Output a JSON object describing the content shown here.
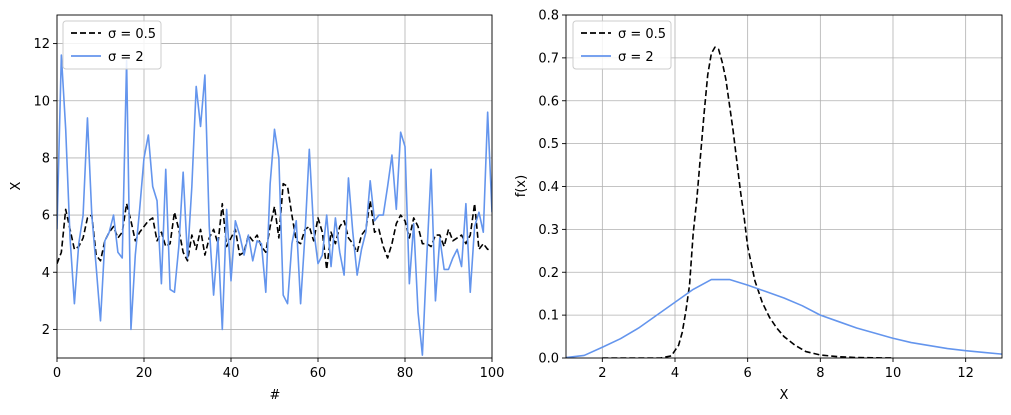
{
  "chart_data": [
    {
      "type": "line",
      "xlabel": "#",
      "ylabel": "X",
      "xlim": [
        0,
        100
      ],
      "ylim": [
        1,
        13
      ],
      "xticks": [
        "0",
        "20",
        "40",
        "60",
        "80",
        "100"
      ],
      "yticks": [
        "2",
        "4",
        "6",
        "8",
        "10",
        "12"
      ],
      "grid": true,
      "legend_position": "top-left",
      "series": [
        {
          "name": "σ = 0.5",
          "color": "#000000",
          "dash": true,
          "y": [
            4.3,
            4.7,
            6.2,
            5.5,
            4.8,
            4.9,
            5.2,
            5.9,
            6.0,
            4.6,
            4.4,
            5.1,
            5.4,
            5.6,
            5.2,
            5.4,
            6.4,
            5.8,
            5.1,
            5.4,
            5.6,
            5.8,
            5.9,
            5.1,
            5.4,
            4.9,
            5.0,
            6.1,
            5.5,
            4.7,
            4.4,
            5.3,
            4.8,
            5.5,
            4.6,
            5.2,
            5.5,
            5.0,
            6.4,
            4.9,
            5.2,
            5.5,
            4.6,
            4.7,
            5.3,
            5.1,
            5.3,
            4.9,
            4.7,
            5.6,
            6.3,
            5.2,
            7.1,
            7.0,
            6.0,
            5.1,
            5.0,
            5.5,
            5.6,
            5.1,
            5.9,
            5.4,
            4.1,
            5.4,
            5.0,
            5.6,
            5.8,
            5.2,
            5.0,
            4.7,
            5.3,
            5.5,
            6.5,
            5.4,
            5.5,
            4.9,
            4.5,
            5.0,
            5.7,
            6.0,
            5.8,
            5.2,
            5.9,
            5.6,
            5.0,
            5.0,
            4.9,
            5.3,
            5.3,
            4.9,
            5.5,
            5.1,
            5.2,
            5.3,
            5.0,
            5.3,
            6.4,
            4.8,
            5.0,
            4.8,
            4.8
          ]
        },
        {
          "name": "σ = 2",
          "color": "#6495ed",
          "dash": false,
          "y": [
            5.5,
            11.6,
            9.0,
            5.2,
            2.9,
            5.0,
            6.0,
            9.4,
            6.0,
            4.2,
            2.3,
            5.1,
            5.4,
            6.0,
            4.7,
            4.5,
            11.4,
            2.0,
            4.6,
            6.2,
            8.0,
            8.8,
            7.0,
            6.5,
            3.6,
            7.6,
            3.4,
            3.3,
            4.9,
            7.5,
            4.5,
            7.0,
            10.5,
            9.1,
            10.9,
            5.6,
            3.2,
            5.2,
            2.0,
            6.2,
            3.7,
            5.8,
            5.3,
            4.6,
            5.3,
            4.4,
            5.1,
            5.0,
            3.3,
            7.1,
            9.0,
            8.0,
            3.2,
            2.9,
            5.0,
            5.8,
            2.9,
            5.3,
            8.3,
            5.5,
            4.3,
            4.6,
            6.0,
            4.2,
            5.9,
            4.7,
            3.9,
            7.3,
            5.4,
            3.9,
            4.8,
            5.4,
            7.2,
            5.8,
            6.0,
            6.0,
            7.0,
            8.1,
            6.2,
            8.9,
            8.4,
            3.6,
            5.7,
            2.6,
            1.1,
            4.5,
            7.6,
            3.0,
            5.2,
            4.1,
            4.1,
            4.5,
            4.8,
            4.2,
            6.4,
            3.3,
            5.6,
            6.1,
            5.4,
            9.6,
            6.1
          ]
        }
      ]
    },
    {
      "type": "line",
      "xlabel": "X",
      "ylabel": "f(x)",
      "xlim": [
        1,
        13
      ],
      "ylim": [
        0,
        0.8
      ],
      "xticks": [
        "2",
        "4",
        "6",
        "8",
        "10",
        "12"
      ],
      "yticks": [
        "0.0",
        "0.1",
        "0.2",
        "0.3",
        "0.4",
        "0.5",
        "0.6",
        "0.7",
        "0.8"
      ],
      "grid": true,
      "legend_position": "top-left",
      "series": [
        {
          "name": "σ = 0.5",
          "color": "#000000",
          "dash": true,
          "x": [
            2.0,
            3.0,
            3.6,
            3.9,
            4.1,
            4.2,
            4.3,
            4.4,
            4.5,
            4.6,
            4.7,
            4.8,
            4.9,
            5.0,
            5.1,
            5.2,
            5.3,
            5.4,
            5.5,
            5.6,
            5.7,
            5.8,
            5.9,
            6.0,
            6.2,
            6.4,
            6.6,
            6.8,
            7.0,
            7.3,
            7.6,
            8.0,
            8.5,
            9.0,
            10.0
          ],
          "y": [
            0.0,
            0.0,
            0.0,
            0.005,
            0.03,
            0.06,
            0.11,
            0.17,
            0.29,
            0.37,
            0.47,
            0.57,
            0.66,
            0.71,
            0.725,
            0.72,
            0.69,
            0.65,
            0.59,
            0.53,
            0.46,
            0.39,
            0.33,
            0.26,
            0.18,
            0.13,
            0.095,
            0.07,
            0.05,
            0.03,
            0.015,
            0.007,
            0.003,
            0.001,
            0.0
          ]
        },
        {
          "name": "σ = 2",
          "color": "#6495ed",
          "dash": false,
          "x": [
            1.0,
            1.5,
            2.0,
            2.5,
            3.0,
            3.5,
            4.0,
            4.5,
            5.0,
            5.5,
            6.0,
            6.5,
            7.0,
            7.5,
            8.0,
            8.5,
            9.0,
            9.5,
            10.0,
            10.5,
            11.0,
            11.5,
            12.0,
            12.5,
            13.0
          ],
          "y": [
            0.001,
            0.006,
            0.025,
            0.045,
            0.07,
            0.1,
            0.13,
            0.16,
            0.183,
            0.183,
            0.17,
            0.155,
            0.14,
            0.122,
            0.1,
            0.085,
            0.07,
            0.058,
            0.046,
            0.036,
            0.029,
            0.022,
            0.017,
            0.013,
            0.009
          ]
        }
      ]
    }
  ]
}
